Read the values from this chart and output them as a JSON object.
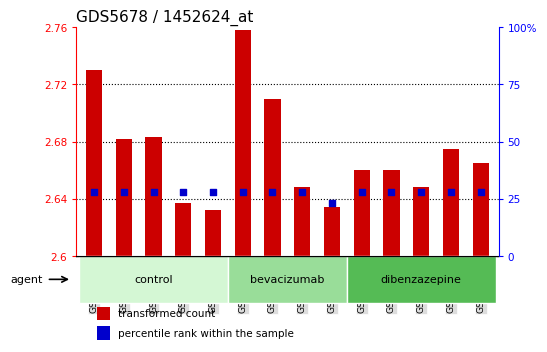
{
  "title": "GDS5678 / 1452624_at",
  "samples": [
    "GSM967852",
    "GSM967853",
    "GSM967854",
    "GSM967855",
    "GSM967856",
    "GSM967862",
    "GSM967863",
    "GSM967864",
    "GSM967865",
    "GSM967857",
    "GSM967858",
    "GSM967859",
    "GSM967860",
    "GSM967861"
  ],
  "transformed_count": [
    2.73,
    2.682,
    2.683,
    2.637,
    2.632,
    2.758,
    2.71,
    2.648,
    2.634,
    2.66,
    2.66,
    2.648,
    2.675,
    2.665
  ],
  "percentile_rank": [
    28,
    28,
    28,
    28,
    28,
    28,
    28,
    28,
    23,
    28,
    28,
    28,
    28,
    28
  ],
  "groups": {
    "control": [
      0,
      1,
      2,
      3,
      4
    ],
    "bevacizumab": [
      5,
      6,
      7,
      8
    ],
    "dibenzazepine": [
      9,
      10,
      11,
      12,
      13
    ]
  },
  "group_colors": {
    "control": "#d4f7d4",
    "bevacizumab": "#99dd99",
    "dibenzazepine": "#55bb55"
  },
  "ylim_left": [
    2.6,
    2.76
  ],
  "ylim_right": [
    0,
    100
  ],
  "yticks_left": [
    2.6,
    2.64,
    2.68,
    2.72,
    2.76
  ],
  "yticks_right": [
    0,
    25,
    50,
    75,
    100
  ],
  "bar_color": "#cc0000",
  "bar_bottom": 2.6,
  "dot_color": "#0000cc",
  "background_color": "#ffffff",
  "plot_bg_color": "#ffffff",
  "grid_color": "#000000",
  "title_fontsize": 11,
  "tick_fontsize": 7.5,
  "bar_width": 0.55
}
